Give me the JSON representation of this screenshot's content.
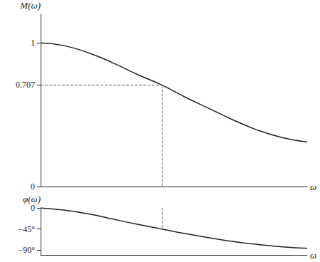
{
  "chart_data": [
    {
      "type": "line",
      "y_label": "M(ω)",
      "x_label": "ω",
      "x": [
        0,
        0.2,
        0.4,
        0.6,
        0.8,
        1.0,
        1.2,
        1.4,
        1.6,
        1.8,
        2.0,
        2.2
      ],
      "values": [
        1,
        0.98,
        0.93,
        0.86,
        0.78,
        0.707,
        0.62,
        0.54,
        0.46,
        0.39,
        0.34,
        0.31
      ],
      "xlim": [
        0,
        2.2
      ],
      "ylim": [
        0,
        1.2
      ],
      "yticks": [
        0,
        0.707,
        1
      ],
      "cutoff_x": 1.0,
      "color": "#222222",
      "line_style": "solid",
      "grid": false,
      "tick_labels": "y"
    },
    {
      "type": "line",
      "y_label": "φ(ω)",
      "x_label": "ω",
      "x": [
        0,
        0.2,
        0.4,
        0.6,
        0.8,
        1.0,
        1.2,
        1.4,
        1.6,
        1.8,
        2.0,
        2.2
      ],
      "values": [
        0,
        -5,
        -13,
        -24,
        -35,
        -45,
        -55,
        -64,
        -72,
        -78,
        -83,
        -86
      ],
      "xlim": [
        0,
        2.2
      ],
      "ylim": [
        -100,
        0
      ],
      "yticks": [
        {
          "value": -90,
          "label": "−90°"
        },
        {
          "value": -45,
          "label": "−45°"
        },
        0
      ],
      "cutoff_x": 1.0,
      "color": "#222222",
      "line_style": "solid",
      "grid": false,
      "tick_labels": "y"
    }
  ]
}
